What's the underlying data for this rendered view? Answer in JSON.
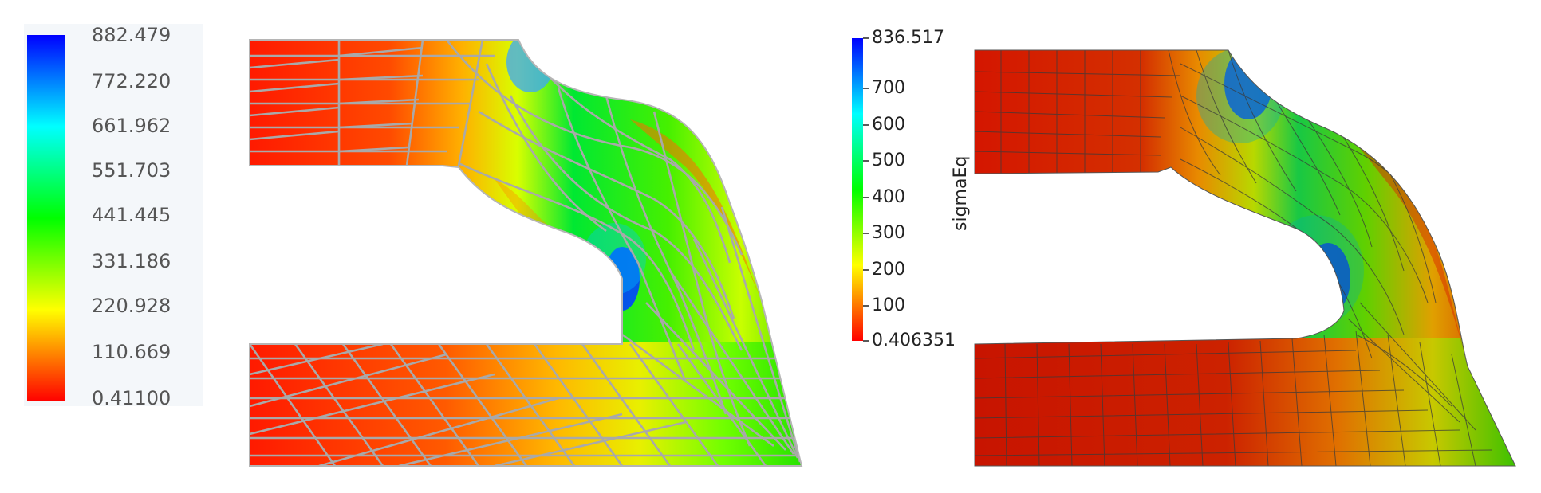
{
  "left_scale": {
    "labels": [
      "882.479",
      "772.220",
      "661.962",
      "551.703",
      "441.445",
      "331.186",
      "220.928",
      "110.669",
      "0.41100"
    ]
  },
  "right_scale": {
    "title": "sigmaEq",
    "max_label": "836.517",
    "min_label": "0.406351",
    "ticks": [
      "700",
      "600",
      "500",
      "400",
      "300",
      "200",
      "100"
    ]
  },
  "colors": {
    "low": "#ff0000",
    "mid_low": "#ffff00",
    "mid": "#00ff00",
    "mid_high": "#00ffff",
    "high": "#0000ff",
    "mesh_left": "#a9a9a9",
    "mesh_right": "#333333"
  }
}
